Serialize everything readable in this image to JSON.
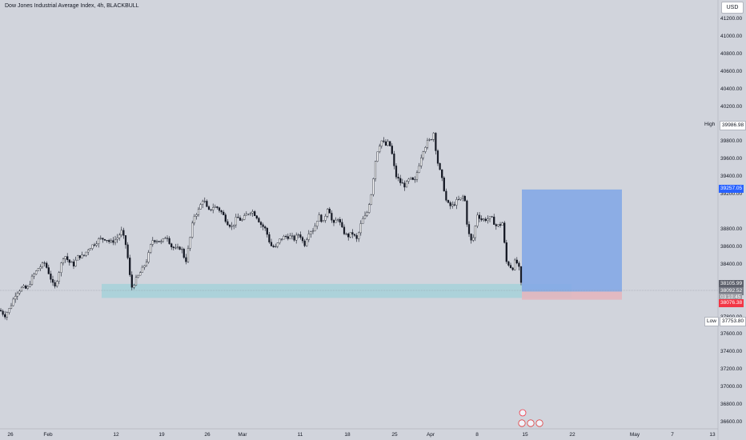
{
  "chart_title": "Dow Jones Industrial Average Index, 4h, BLACKBULL",
  "currency_label": "USD",
  "chart_data": {
    "type": "candlestick",
    "title": "Dow Jones Industrial Average Index, 4h, BLACKBULL",
    "y_axis": {
      "side": "right",
      "range": [
        36550,
        41350
      ],
      "ticks": [
        "41200.00",
        "41000.00",
        "40800.00",
        "40600.00",
        "40400.00",
        "40200.00",
        "39800.00",
        "39600.00",
        "39400.00",
        "39200.00",
        "38800.00",
        "38600.00",
        "38400.00",
        "37800.00",
        "37600.00",
        "37400.00",
        "37200.00",
        "37000.00",
        "36800.00",
        "36600.00"
      ]
    },
    "x_axis": {
      "ticks": [
        "26",
        "Feb",
        "12",
        "19",
        "26",
        "Mar",
        "11",
        "18",
        "25",
        "Apr",
        "8",
        "15",
        "22",
        "May",
        "7",
        "13"
      ]
    },
    "high_label": "High",
    "high_value": "39986.98",
    "low_label": "Low",
    "low_value": "37753.80",
    "target_price": "39257.05",
    "price_labels": [
      "38105.99",
      "38092.52",
      "38076.38"
    ],
    "price_label_time": "03:10:45",
    "trend_points": [
      [
        0,
        37880
      ],
      [
        6,
        37820
      ],
      [
        12,
        37900
      ],
      [
        20,
        38080
      ],
      [
        28,
        38140
      ],
      [
        34,
        38120
      ],
      [
        40,
        38250
      ],
      [
        48,
        38360
      ],
      [
        56,
        38420
      ],
      [
        62,
        38280
      ],
      [
        68,
        38120
      ],
      [
        74,
        38330
      ],
      [
        80,
        38520
      ],
      [
        86,
        38430
      ],
      [
        92,
        38400
      ],
      [
        98,
        38500
      ],
      [
        104,
        38490
      ],
      [
        110,
        38580
      ],
      [
        118,
        38640
      ],
      [
        124,
        38690
      ],
      [
        132,
        38700
      ],
      [
        138,
        38650
      ],
      [
        146,
        38700
      ],
      [
        152,
        38780
      ],
      [
        158,
        38600
      ],
      [
        164,
        38130
      ],
      [
        170,
        38230
      ],
      [
        178,
        38350
      ],
      [
        184,
        38460
      ],
      [
        190,
        38680
      ],
      [
        196,
        38680
      ],
      [
        202,
        38650
      ],
      [
        208,
        38740
      ],
      [
        214,
        38610
      ],
      [
        220,
        38570
      ],
      [
        226,
        38600
      ],
      [
        232,
        38430
      ],
      [
        236,
        38620
      ],
      [
        242,
        38950
      ],
      [
        248,
        39020
      ],
      [
        254,
        39160
      ],
      [
        260,
        39000
      ],
      [
        266,
        39060
      ],
      [
        272,
        39050
      ],
      [
        278,
        38980
      ],
      [
        284,
        38880
      ],
      [
        290,
        38830
      ],
      [
        296,
        38940
      ],
      [
        302,
        38900
      ],
      [
        308,
        38970
      ],
      [
        314,
        39020
      ],
      [
        320,
        38960
      ],
      [
        326,
        38860
      ],
      [
        332,
        38800
      ],
      [
        338,
        38620
      ],
      [
        344,
        38590
      ],
      [
        350,
        38690
      ],
      [
        356,
        38720
      ],
      [
        362,
        38720
      ],
      [
        368,
        38690
      ],
      [
        374,
        38760
      ],
      [
        380,
        38620
      ],
      [
        386,
        38780
      ],
      [
        392,
        38800
      ],
      [
        398,
        38960
      ],
      [
        404,
        38880
      ],
      [
        410,
        39080
      ],
      [
        416,
        38840
      ],
      [
        422,
        38940
      ],
      [
        428,
        38790
      ],
      [
        434,
        38720
      ],
      [
        440,
        38760
      ],
      [
        446,
        38680
      ],
      [
        452,
        38900
      ],
      [
        458,
        38970
      ],
      [
        464,
        39220
      ],
      [
        470,
        39660
      ],
      [
        476,
        39820
      ],
      [
        482,
        39760
      ],
      [
        486,
        39800
      ],
      [
        490,
        39650
      ],
      [
        494,
        39420
      ],
      [
        500,
        39340
      ],
      [
        506,
        39300
      ],
      [
        512,
        39380
      ],
      [
        518,
        39340
      ],
      [
        522,
        39490
      ],
      [
        528,
        39700
      ],
      [
        534,
        39800
      ],
      [
        538,
        39820
      ],
      [
        542,
        39910
      ],
      [
        546,
        39600
      ],
      [
        550,
        39450
      ],
      [
        554,
        39300
      ],
      [
        558,
        39100
      ],
      [
        564,
        39060
      ],
      [
        570,
        39120
      ],
      [
        576,
        39150
      ],
      [
        580,
        39200
      ],
      [
        584,
        38820
      ],
      [
        588,
        38660
      ],
      [
        592,
        38720
      ],
      [
        596,
        38980
      ],
      [
        602,
        38910
      ],
      [
        608,
        38920
      ],
      [
        614,
        38930
      ],
      [
        620,
        38840
      ],
      [
        624,
        38850
      ],
      [
        628,
        38880
      ],
      [
        632,
        38440
      ],
      [
        636,
        38400
      ],
      [
        640,
        38350
      ],
      [
        644,
        38450
      ],
      [
        648,
        38380
      ],
      [
        650,
        38250
      ],
      [
        652,
        38100
      ]
    ],
    "zones": [
      {
        "name": "support-zone",
        "price_range": [
          38020,
          38180
        ],
        "color": "#a6d1d9"
      },
      {
        "name": "profit-zone",
        "price_range": [
          38092.52,
          39257.05
        ],
        "color": "#84a8e6"
      },
      {
        "name": "stop-zone",
        "price_range": [
          38000,
          38092.52
        ],
        "color": "#e3b6be"
      }
    ]
  }
}
